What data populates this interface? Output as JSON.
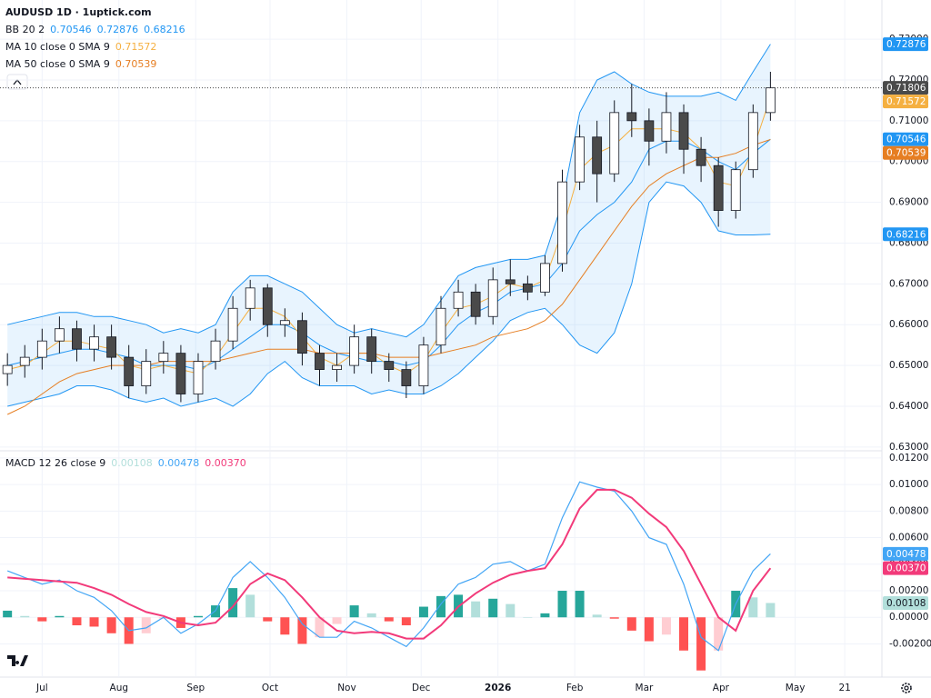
{
  "header": {
    "title": "AUDUSD 1D · 1uptick.com"
  },
  "chart_data": [
    {
      "type": "candlestick",
      "x": [
        -14,
        -7,
        0,
        7,
        14,
        21,
        28,
        35,
        42,
        49,
        56,
        63,
        70,
        77,
        84,
        91,
        98,
        105,
        112,
        119,
        126,
        133,
        140,
        147,
        154,
        161,
        168,
        175,
        182,
        189,
        196,
        203,
        210,
        217,
        224,
        231,
        238,
        245,
        252,
        259,
        266,
        273,
        280,
        287,
        294
      ],
      "open": [
        0.648,
        0.65,
        0.652,
        0.656,
        0.659,
        0.654,
        0.657,
        0.652,
        0.645,
        0.651,
        0.653,
        0.643,
        0.651,
        0.656,
        0.664,
        0.669,
        0.66,
        0.661,
        0.653,
        0.649,
        0.65,
        0.657,
        0.651,
        0.649,
        0.645,
        0.655,
        0.664,
        0.668,
        0.662,
        0.671,
        0.67,
        0.668,
        0.675,
        0.695,
        0.706,
        0.697,
        0.712,
        0.71,
        0.705,
        0.712,
        0.703,
        0.699,
        0.688,
        0.698,
        0.712
      ],
      "high": [
        0.653,
        0.655,
        0.659,
        0.662,
        0.661,
        0.66,
        0.66,
        0.655,
        0.654,
        0.656,
        0.655,
        0.653,
        0.659,
        0.667,
        0.671,
        0.67,
        0.664,
        0.663,
        0.655,
        0.653,
        0.66,
        0.659,
        0.653,
        0.651,
        0.657,
        0.667,
        0.671,
        0.67,
        0.674,
        0.676,
        0.672,
        0.677,
        0.698,
        0.709,
        0.71,
        0.715,
        0.719,
        0.713,
        0.717,
        0.714,
        0.706,
        0.701,
        0.7,
        0.714,
        0.722
      ],
      "low": [
        0.645,
        0.647,
        0.649,
        0.653,
        0.651,
        0.651,
        0.649,
        0.642,
        0.643,
        0.648,
        0.641,
        0.641,
        0.649,
        0.654,
        0.661,
        0.657,
        0.657,
        0.65,
        0.645,
        0.646,
        0.648,
        0.648,
        0.646,
        0.642,
        0.643,
        0.653,
        0.662,
        0.66,
        0.66,
        0.667,
        0.666,
        0.667,
        0.673,
        0.693,
        0.69,
        0.695,
        0.706,
        0.699,
        0.702,
        0.697,
        0.695,
        0.684,
        0.686,
        0.696,
        0.71
      ],
      "close": [
        0.65,
        0.652,
        0.656,
        0.659,
        0.654,
        0.657,
        0.652,
        0.645,
        0.651,
        0.653,
        0.643,
        0.651,
        0.656,
        0.664,
        0.669,
        0.66,
        0.661,
        0.653,
        0.649,
        0.65,
        0.657,
        0.651,
        0.649,
        0.645,
        0.655,
        0.664,
        0.668,
        0.662,
        0.671,
        0.67,
        0.668,
        0.675,
        0.695,
        0.706,
        0.697,
        0.712,
        0.71,
        0.705,
        0.712,
        0.703,
        0.699,
        0.688,
        0.698,
        0.712,
        0.71806
      ],
      "up_color": "#ffffff",
      "down_color": "#4a4a4a",
      "outline_color": "#131722",
      "xlim": [
        -17,
        339
      ],
      "ylim": [
        0.6293,
        0.7396
      ],
      "yticks": [
        {
          "value": 0.63,
          "label": "0.63000"
        },
        {
          "value": 0.64,
          "label": "0.64000"
        },
        {
          "value": 0.65,
          "label": "0.65000"
        },
        {
          "value": 0.66,
          "label": "0.66000"
        },
        {
          "value": 0.67,
          "label": "0.67000"
        },
        {
          "value": 0.68,
          "label": "0.68000"
        },
        {
          "value": 0.69,
          "label": "0.69000"
        },
        {
          "value": 0.7,
          "label": "0.70000"
        },
        {
          "value": 0.71,
          "label": "0.71000"
        },
        {
          "value": 0.72,
          "label": "0.72000"
        },
        {
          "value": 0.73,
          "label": "0.73000"
        }
      ],
      "grid": true,
      "overlays": [
        {
          "label": "BB 20 2",
          "fill": "#2196f3",
          "lines": [
            {
              "color": "#2196f3",
              "values": [
                0.65,
                0.651,
                0.652,
                0.653,
                0.654,
                0.654,
                0.653,
                0.652,
                0.65,
                0.65,
                0.65,
                0.649,
                0.651,
                0.654,
                0.657,
                0.66,
                0.66,
                0.658,
                0.655,
                0.653,
                0.652,
                0.651,
                0.651,
                0.65,
                0.651,
                0.655,
                0.66,
                0.663,
                0.665,
                0.668,
                0.669,
                0.67,
                0.675,
                0.683,
                0.687,
                0.69,
                0.695,
                0.703,
                0.705,
                0.705,
                0.703,
                0.7,
                0.698,
                0.702,
                0.70546
              ]
            },
            {
              "color": "#2196f3",
              "values": [
                0.66,
                0.661,
                0.662,
                0.663,
                0.663,
                0.662,
                0.662,
                0.661,
                0.66,
                0.658,
                0.659,
                0.658,
                0.66,
                0.668,
                0.672,
                0.672,
                0.67,
                0.668,
                0.664,
                0.66,
                0.658,
                0.659,
                0.658,
                0.657,
                0.66,
                0.666,
                0.672,
                0.674,
                0.675,
                0.676,
                0.676,
                0.677,
                0.69,
                0.712,
                0.72,
                0.722,
                0.719,
                0.717,
                0.716,
                0.716,
                0.716,
                0.717,
                0.715,
                0.722,
                0.72876
              ]
            },
            {
              "color": "#2196f3",
              "values": [
                0.64,
                0.641,
                0.642,
                0.643,
                0.645,
                0.645,
                0.644,
                0.642,
                0.641,
                0.642,
                0.64,
                0.641,
                0.642,
                0.64,
                0.643,
                0.648,
                0.651,
                0.647,
                0.645,
                0.645,
                0.645,
                0.643,
                0.644,
                0.643,
                0.643,
                0.645,
                0.648,
                0.652,
                0.656,
                0.661,
                0.663,
                0.664,
                0.66,
                0.655,
                0.653,
                0.658,
                0.67,
                0.69,
                0.695,
                0.694,
                0.69,
                0.683,
                0.682,
                0.682,
                0.68216
              ]
            }
          ]
        },
        {
          "label": "MA 10 close 0 SMA 9",
          "lines": [
            {
              "color": "#f5b041",
              "values": [
                0.649,
                0.65,
                0.653,
                0.656,
                0.656,
                0.655,
                0.654,
                0.65,
                0.649,
                0.65,
                0.649,
                0.648,
                0.652,
                0.658,
                0.664,
                0.664,
                0.662,
                0.657,
                0.652,
                0.65,
                0.653,
                0.653,
                0.65,
                0.648,
                0.651,
                0.658,
                0.664,
                0.665,
                0.667,
                0.67,
                0.669,
                0.671,
                0.683,
                0.698,
                0.702,
                0.704,
                0.708,
                0.708,
                0.708,
                0.707,
                0.703,
                0.695,
                0.694,
                0.703,
                0.71572
              ]
            }
          ]
        },
        {
          "label": "MA 50 close 0 SMA 9",
          "lines": [
            {
              "color": "#e67e22",
              "values": [
                0.638,
                0.64,
                0.643,
                0.646,
                0.648,
                0.649,
                0.65,
                0.65,
                0.65,
                0.651,
                0.651,
                0.651,
                0.651,
                0.652,
                0.653,
                0.654,
                0.654,
                0.654,
                0.653,
                0.653,
                0.653,
                0.653,
                0.652,
                0.652,
                0.652,
                0.653,
                0.654,
                0.655,
                0.657,
                0.658,
                0.659,
                0.661,
                0.665,
                0.671,
                0.677,
                0.683,
                0.689,
                0.694,
                0.697,
                0.699,
                0.701,
                0.701,
                0.702,
                0.704,
                0.70539
              ]
            }
          ]
        }
      ]
    },
    {
      "type": "macd",
      "label": "MACD 12 26 close 9",
      "x": [
        -14,
        -7,
        0,
        7,
        14,
        21,
        28,
        35,
        42,
        49,
        56,
        63,
        70,
        77,
        84,
        91,
        98,
        105,
        112,
        119,
        126,
        133,
        140,
        147,
        154,
        161,
        168,
        175,
        182,
        189,
        196,
        203,
        210,
        217,
        224,
        231,
        238,
        245,
        252,
        259,
        266,
        273,
        280,
        287,
        294
      ],
      "xlim": [
        -17,
        339
      ],
      "ylim": [
        -0.0045,
        0.01247
      ],
      "xticks": [
        {
          "value": 0,
          "label": "Jul"
        },
        {
          "value": 31,
          "label": "Aug"
        },
        {
          "value": 62,
          "label": "Sep"
        },
        {
          "value": 92,
          "label": "Oct"
        },
        {
          "value": 123,
          "label": "Nov"
        },
        {
          "value": 153,
          "label": "Dec"
        },
        {
          "value": 184,
          "label": "2026"
        },
        {
          "value": 215,
          "label": "Feb"
        },
        {
          "value": 243,
          "label": "Mar"
        },
        {
          "value": 274,
          "label": "Apr"
        },
        {
          "value": 304,
          "label": "May"
        },
        {
          "value": 324,
          "label": "21"
        }
      ],
      "yticks": [
        {
          "value": -0.002,
          "label": "-0.00200"
        },
        {
          "value": 0,
          "label": "0.00000"
        },
        {
          "value": 0.002,
          "label": "0.00200"
        },
        {
          "value": 0.004,
          "label": "0.00400"
        },
        {
          "value": 0.006,
          "label": "0.00600"
        },
        {
          "value": 0.008,
          "label": "0.00800"
        },
        {
          "value": 0.01,
          "label": "0.01000"
        },
        {
          "value": 0.012,
          "label": "0.01200"
        }
      ],
      "grid": true,
      "series": [
        {
          "type": "histogram",
          "color": "#b2dfdb",
          "colors": {
            "up_grow": "#26a69a",
            "up_fall": "#b2dfdb",
            "down_grow": "#ff5252",
            "down_fall": "#ffcdd2"
          },
          "values": [
            0.0005,
            0.0001,
            -0.0003,
            0.0001,
            -0.0006,
            -0.0007,
            -0.0012,
            -0.002,
            -0.0012,
            -0.0001,
            -0.0008,
            0.0001,
            0.0009,
            0.0022,
            0.0017,
            -0.0003,
            -0.0013,
            -0.002,
            -0.0015,
            -0.0005,
            0.0009,
            0.0003,
            -0.0003,
            -0.0006,
            0.0008,
            0.0016,
            0.0017,
            0.0012,
            0.0014,
            0.001,
            0,
            0.0003,
            0.002,
            0.002,
            0.0002,
            -0.0001,
            -0.001,
            -0.0018,
            -0.0013,
            -0.0025,
            -0.004,
            -0.0025,
            0.002,
            0.0015,
            0.00108
          ]
        },
        {
          "type": "line",
          "color": "#42a5f5",
          "values": [
            0.0035,
            0.003,
            0.0025,
            0.0028,
            0.002,
            0.0015,
            0.0005,
            -0.001,
            -0.0008,
            0,
            -0.0012,
            -0.0005,
            0.0005,
            0.003,
            0.0042,
            0.003,
            0.0015,
            -0.0005,
            -0.0015,
            -0.0015,
            -0.0003,
            -0.0008,
            -0.0015,
            -0.0022,
            -0.0008,
            0.001,
            0.0025,
            0.003,
            0.004,
            0.0042,
            0.0035,
            0.004,
            0.0075,
            0.0102,
            0.0098,
            0.0095,
            0.008,
            0.006,
            0.0055,
            0.0025,
            -0.0015,
            -0.0025,
            0.001,
            0.0035,
            0.00478
          ]
        },
        {
          "type": "line",
          "color": "#f23a7a",
          "last_label": "0.00370",
          "values": [
            0.003,
            0.0029,
            0.0028,
            0.0027,
            0.0026,
            0.0022,
            0.0017,
            0.001,
            0.0004,
            0.0001,
            -0.0004,
            -0.0006,
            -0.0004,
            0.0008,
            0.0025,
            0.0033,
            0.0028,
            0.0015,
            0,
            -0.001,
            -0.0012,
            -0.0011,
            -0.0012,
            -0.0016,
            -0.0016,
            -0.0006,
            0.0008,
            0.0018,
            0.0026,
            0.0032,
            0.0035,
            0.0037,
            0.0055,
            0.0082,
            0.0096,
            0.0096,
            0.009,
            0.0078,
            0.0068,
            0.005,
            0.0025,
            0,
            -0.001,
            0.002,
            0.0037
          ]
        }
      ]
    }
  ]
}
